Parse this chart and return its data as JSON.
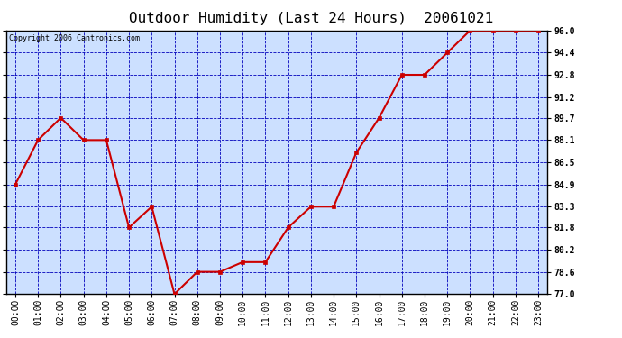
{
  "title": "Outdoor Humidity (Last 24 Hours)  20061021",
  "copyright_text": "Copyright 2006 Cantronics.com",
  "hours": [
    0,
    1,
    2,
    3,
    4,
    5,
    6,
    7,
    8,
    9,
    10,
    11,
    12,
    13,
    14,
    15,
    16,
    17,
    18,
    19,
    20,
    21,
    22,
    23
  ],
  "x_labels": [
    "00:00",
    "01:00",
    "02:00",
    "03:00",
    "04:00",
    "05:00",
    "06:00",
    "07:00",
    "08:00",
    "09:00",
    "10:00",
    "11:00",
    "12:00",
    "13:00",
    "14:00",
    "15:00",
    "16:00",
    "17:00",
    "18:00",
    "19:00",
    "20:00",
    "21:00",
    "22:00",
    "23:00"
  ],
  "humidity": [
    84.9,
    88.1,
    89.7,
    88.1,
    88.1,
    81.8,
    83.3,
    77.0,
    78.6,
    78.6,
    79.3,
    79.3,
    81.8,
    83.3,
    83.3,
    87.2,
    89.7,
    92.8,
    92.8,
    94.4,
    96.0,
    96.0,
    96.0,
    96.0
  ],
  "line_color": "#cc0000",
  "marker_color": "#cc0000",
  "bg_color": "#ffffff",
  "plot_bg_color": "#cce0ff",
  "grid_color": "#0000bb",
  "border_color": "#000000",
  "y_ticks": [
    77.0,
    78.6,
    80.2,
    81.8,
    83.3,
    84.9,
    86.5,
    88.1,
    89.7,
    91.2,
    92.8,
    94.4,
    96.0
  ],
  "y_min": 77.0,
  "y_max": 96.0,
  "title_fontsize": 11.5,
  "tick_fontsize": 7,
  "copyright_fontsize": 6
}
